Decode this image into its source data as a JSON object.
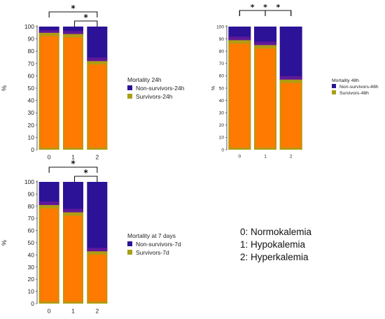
{
  "colors": {
    "non_survivors": "#2b1296",
    "survivors": "#a8a014",
    "orange": "#ff7a00",
    "purple_band": "#6a1a9a",
    "bracket": "#111111"
  },
  "significance_mark": "*",
  "key": {
    "lines": [
      "0: Normokalemia",
      "1: Hypokalemia",
      "2: Hyperkalemia"
    ]
  },
  "chart_data": [
    {
      "type": "bar",
      "stacked": true,
      "categories": [
        "0",
        "1",
        "2"
      ],
      "ylabel": "%",
      "ylim": [
        0,
        100
      ],
      "yticks": [
        0,
        10,
        20,
        30,
        40,
        50,
        60,
        70,
        80,
        90,
        100
      ],
      "legend_title": "Mortality 24h",
      "series": [
        {
          "name": "Survivors-24h",
          "values": [
            95,
            94,
            72
          ]
        },
        {
          "name": "Non-survivors-24h",
          "values": [
            5,
            6,
            28
          ]
        }
      ],
      "significance": [
        [
          0,
          2
        ],
        [
          1,
          2
        ]
      ]
    },
    {
      "type": "bar",
      "stacked": true,
      "categories": [
        "0",
        "1",
        "2"
      ],
      "ylabel": "%",
      "ylim": [
        0,
        100
      ],
      "yticks": [
        0,
        10,
        20,
        30,
        40,
        50,
        60,
        70,
        80,
        90,
        100
      ],
      "legend_title": "Mortality 48h",
      "series": [
        {
          "name": "Survivors-48h",
          "values": [
            89,
            85,
            57
          ]
        },
        {
          "name": "Non-survivors-48h",
          "values": [
            11,
            15,
            43
          ]
        }
      ],
      "significance": [
        [
          0,
          1
        ],
        [
          0,
          2
        ],
        [
          1,
          2
        ]
      ]
    },
    {
      "type": "bar",
      "stacked": true,
      "categories": [
        "0",
        "1",
        "2"
      ],
      "ylabel": "%",
      "ylim": [
        0,
        100
      ],
      "yticks": [
        0,
        10,
        20,
        30,
        40,
        50,
        60,
        70,
        80,
        90,
        100
      ],
      "legend_title": "Mortality at 7 days",
      "series": [
        {
          "name": "Survivors-7d",
          "values": [
            81,
            75,
            43
          ]
        },
        {
          "name": "Non-survivors-7d",
          "values": [
            19,
            25,
            57
          ]
        }
      ],
      "significance": [
        [
          0,
          2
        ],
        [
          1,
          2
        ]
      ]
    }
  ]
}
